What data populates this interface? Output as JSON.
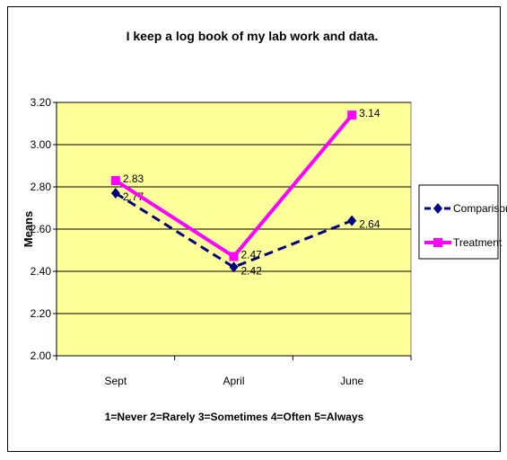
{
  "chart_data": {
    "type": "line",
    "title": "I keep a log book of my lab work and data.",
    "xlabel": "1=Never  2=Rarely  3=Sometimes  4=Often  5=Always",
    "ylabel": "Means",
    "categories": [
      "Sept",
      "April",
      "June"
    ],
    "yticks": [
      "2.00",
      "2.20",
      "2.40",
      "2.60",
      "2.80",
      "3.00",
      "3.20"
    ],
    "ylim": [
      2.0,
      3.2
    ],
    "grid": true,
    "legend_position": "right",
    "plot_background": "#FFFF99",
    "series": [
      {
        "name": "Comparison",
        "values": [
          2.77,
          2.42,
          2.64
        ],
        "labels": [
          "2.77",
          "2.42",
          "2.64"
        ],
        "color": "#000080",
        "line_style": "dashed",
        "marker": "diamond"
      },
      {
        "name": "Treatment",
        "values": [
          2.83,
          2.47,
          3.14
        ],
        "labels": [
          "2.83",
          "2.47",
          "3.14"
        ],
        "color": "#FF00FF",
        "line_style": "solid",
        "marker": "square"
      }
    ]
  }
}
